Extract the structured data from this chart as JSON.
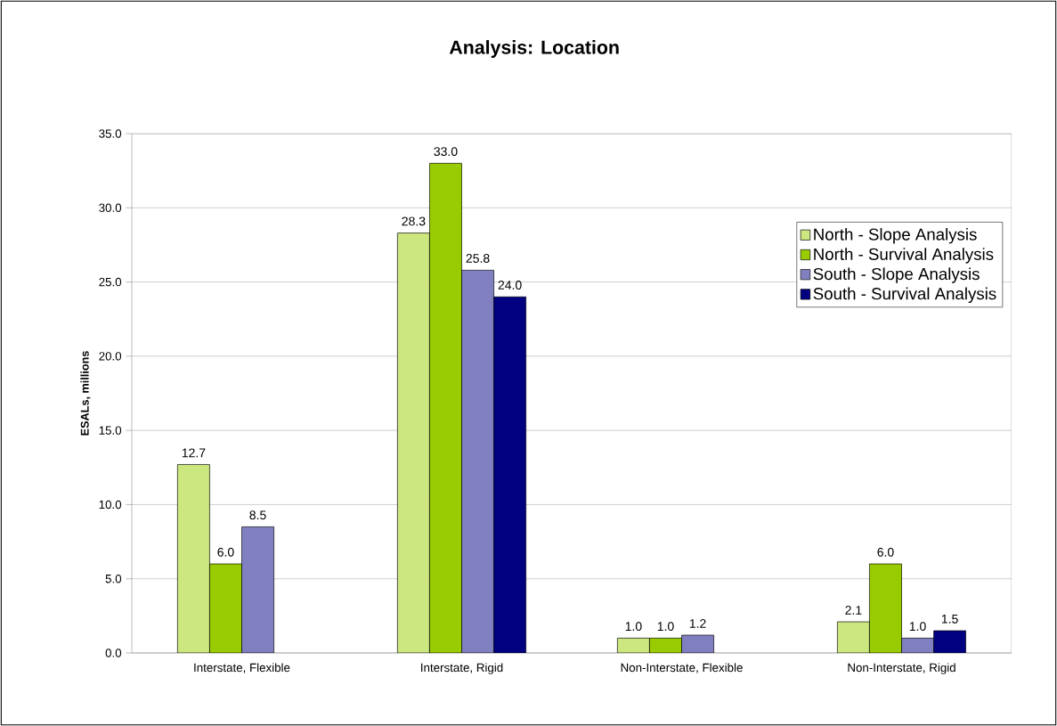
{
  "chart_data": {
    "type": "bar",
    "title": "Analysis: Location",
    "ylabel": "ESALs, millions",
    "categories": [
      "Interstate, Flexible",
      "Interstate, Rigid",
      "Non-Interstate, Flexible",
      "Non-Interstate, Rigid"
    ],
    "series": [
      {
        "name": "North - Slope Analysis",
        "color": "#cce680",
        "values": [
          12.7,
          28.3,
          1.0,
          2.1
        ],
        "value_labels": [
          "12.7",
          "28.3",
          "1.0",
          "2.1"
        ]
      },
      {
        "name": "North - Survival Analysis",
        "color": "#99cc00",
        "values": [
          6.0,
          33.0,
          1.0,
          6.0
        ],
        "value_labels": [
          "6.0",
          "33.0",
          "1.0",
          "6.0"
        ]
      },
      {
        "name": "South - Slope Analysis",
        "color": "#8080c0",
        "values": [
          8.5,
          25.8,
          1.2,
          1.0
        ],
        "value_labels": [
          "8.5",
          "25.8",
          "1.2",
          "1.0"
        ]
      },
      {
        "name": "South - Survival Analysis",
        "color": "#000080",
        "values": [
          null,
          24.0,
          null,
          1.5
        ],
        "value_labels": [
          null,
          "24.0",
          null,
          "1.5"
        ]
      }
    ],
    "ylim": [
      0,
      35
    ],
    "yticks": [
      {
        "value": 0,
        "label": "0.0"
      },
      {
        "value": 5,
        "label": "5.0"
      },
      {
        "value": 10,
        "label": "10.0"
      },
      {
        "value": 15,
        "label": "15.0"
      },
      {
        "value": 20,
        "label": "20.0"
      },
      {
        "value": 25,
        "label": "25.0"
      },
      {
        "value": 30,
        "label": "30.0"
      },
      {
        "value": 35,
        "label": "35.0"
      }
    ],
    "grid": "y",
    "legend": "top right"
  }
}
